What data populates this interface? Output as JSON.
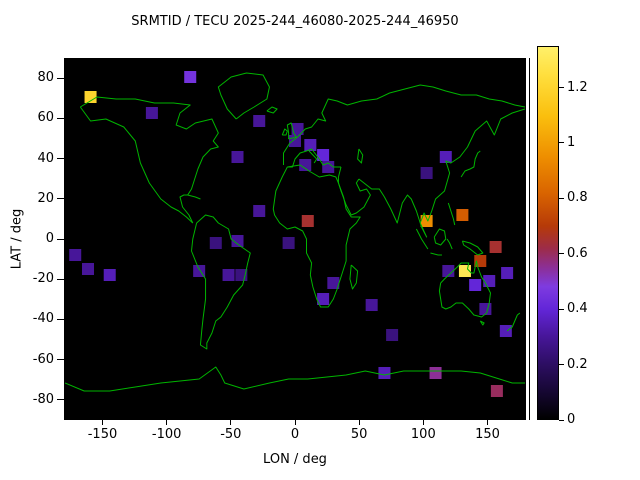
{
  "title": "SRMTID / TECU 2025-244_46080-2025-244_46950",
  "axes": {
    "x_label": "LON / deg",
    "y_label": "LAT / deg",
    "x_ticks": [
      -150,
      -100,
      -50,
      0,
      50,
      100,
      150
    ],
    "y_ticks": [
      -80,
      -60,
      -40,
      -20,
      0,
      20,
      40,
      60,
      80
    ],
    "x_range": [
      -180,
      180
    ],
    "y_range": [
      -90,
      90
    ]
  },
  "map": {
    "background": "#000000",
    "outline_color": "#00b400"
  },
  "colorbar": {
    "ticks": [
      0,
      0.2,
      0.4,
      0.6,
      0.8,
      1,
      1.2
    ],
    "range": [
      0,
      1.35
    ],
    "stops": [
      {
        "v": 0.0,
        "color": "#000000"
      },
      {
        "v": 0.1,
        "color": "#160733"
      },
      {
        "v": 0.2,
        "color": "#2d0e63"
      },
      {
        "v": 0.3,
        "color": "#471699"
      },
      {
        "v": 0.4,
        "color": "#6326d8"
      },
      {
        "v": 0.48,
        "color": "#7e3be0"
      },
      {
        "v": 0.55,
        "color": "#8c2f96"
      },
      {
        "v": 0.62,
        "color": "#9d2c48"
      },
      {
        "v": 0.7,
        "color": "#b63a08"
      },
      {
        "v": 0.82,
        "color": "#d96400"
      },
      {
        "v": 0.95,
        "color": "#ee8e00"
      },
      {
        "v": 1.1,
        "color": "#fabf0e"
      },
      {
        "v": 1.25,
        "color": "#ffdf3e"
      },
      {
        "v": 1.35,
        "color": "#fff06a"
      }
    ]
  },
  "chart_data": {
    "type": "heatmap",
    "title": "SRMTID / TECU 2025-244_46080-2025-244_46950",
    "xlabel": "LON / deg",
    "ylabel": "LAT / deg",
    "value_unit": "TECU",
    "x_range": [
      -180,
      180
    ],
    "y_range": [
      -90,
      90
    ],
    "value_range": [
      0,
      1.35
    ],
    "cell_size_deg": {
      "lon": 9.4,
      "lat": 6
    },
    "points": [
      {
        "lon": -160,
        "lat": 71,
        "value": 1.2
      },
      {
        "lon": -82,
        "lat": 81,
        "value": 0.45
      },
      {
        "lon": -112,
        "lat": 63,
        "value": 0.3
      },
      {
        "lon": -28,
        "lat": 59,
        "value": 0.3
      },
      {
        "lon": 2,
        "lat": 55,
        "value": 0.3
      },
      {
        "lon": -45,
        "lat": 41,
        "value": 0.3
      },
      {
        "lon": 0,
        "lat": 49,
        "value": 0.3
      },
      {
        "lon": 12,
        "lat": 47,
        "value": 0.35
      },
      {
        "lon": 22,
        "lat": 42,
        "value": 0.4
      },
      {
        "lon": 8,
        "lat": 37,
        "value": 0.3
      },
      {
        "lon": 26,
        "lat": 36,
        "value": 0.3
      },
      {
        "lon": 118,
        "lat": 41,
        "value": 0.35
      },
      {
        "lon": 103,
        "lat": 33,
        "value": 0.25
      },
      {
        "lon": 10,
        "lat": 9,
        "value": 0.65
      },
      {
        "lon": 103,
        "lat": 9,
        "value": 0.95
      },
      {
        "lon": 131,
        "lat": 12,
        "value": 0.8
      },
      {
        "lon": -28,
        "lat": 14,
        "value": 0.3
      },
      {
        "lon": -5,
        "lat": -2,
        "value": 0.25
      },
      {
        "lon": -62,
        "lat": -2,
        "value": 0.25
      },
      {
        "lon": -45,
        "lat": -1,
        "value": 0.3
      },
      {
        "lon": -172,
        "lat": -8,
        "value": 0.3
      },
      {
        "lon": -162,
        "lat": -15,
        "value": 0.3
      },
      {
        "lon": -145,
        "lat": -18,
        "value": 0.35
      },
      {
        "lon": -75,
        "lat": -16,
        "value": 0.3
      },
      {
        "lon": -52,
        "lat": -18,
        "value": 0.3
      },
      {
        "lon": -42,
        "lat": -18,
        "value": 0.25
      },
      {
        "lon": 22,
        "lat": -30,
        "value": 0.35
      },
      {
        "lon": 30,
        "lat": -22,
        "value": 0.3
      },
      {
        "lon": 60,
        "lat": -33,
        "value": 0.3
      },
      {
        "lon": 133,
        "lat": -16,
        "value": 1.3
      },
      {
        "lon": 145,
        "lat": -11,
        "value": 0.7
      },
      {
        "lon": 157,
        "lat": -4,
        "value": 0.65
      },
      {
        "lon": 120,
        "lat": -16,
        "value": 0.3
      },
      {
        "lon": 141,
        "lat": -23,
        "value": 0.4
      },
      {
        "lon": 152,
        "lat": -21,
        "value": 0.35
      },
      {
        "lon": 166,
        "lat": -17,
        "value": 0.35
      },
      {
        "lon": 149,
        "lat": -35,
        "value": 0.3
      },
      {
        "lon": 76,
        "lat": -48,
        "value": 0.25
      },
      {
        "lon": 165,
        "lat": -46,
        "value": 0.35
      },
      {
        "lon": 70,
        "lat": -67,
        "value": 0.35
      },
      {
        "lon": 110,
        "lat": -67,
        "value": 0.55
      },
      {
        "lon": 158,
        "lat": -76,
        "value": 0.6
      }
    ]
  }
}
